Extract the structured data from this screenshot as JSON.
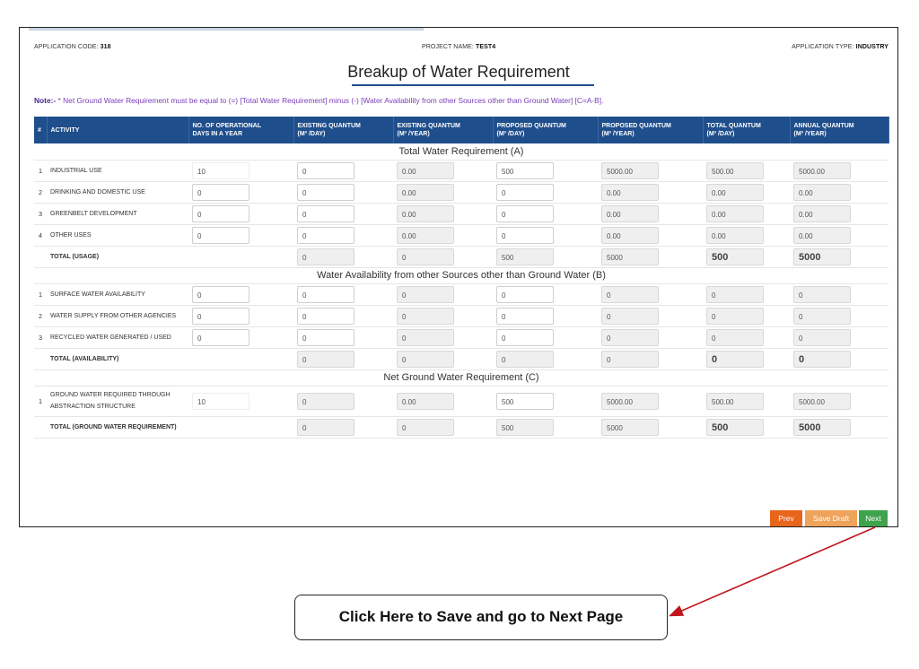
{
  "header": {
    "code_label": "APPLICATION CODE:",
    "code_value": "318",
    "project_label": "PROJECT NAME:",
    "project_value": "TEST4",
    "type_label": "APPLICATION TYPE:",
    "type_value": "INDUSTRY"
  },
  "title": "Breakup of Water Requirement",
  "note": {
    "prefix": "Note:-",
    "text": " * Net Ground Water Requirement must be equal to (=) [Total Water Requirement] minus (-) [Water Availability from other Sources other than Ground Water] [C=A-B]."
  },
  "columns": {
    "num": "#",
    "activity": "ACTIVITY",
    "days_l1": "NO. OF OPERATIONAL",
    "days_l2": "DAYS IN A YEAR",
    "ex_day_l1": "EXISTING QUANTUM",
    "ex_day_l2": "(M³ /DAY)",
    "ex_year_l1": "EXISTING QUANTUM",
    "ex_year_l2": "(M³ /YEAR)",
    "pr_day_l1": "PROPOSED QUANTUM",
    "pr_day_l2": "(M³ /DAY)",
    "pr_year_l1": "PROPOSED QUANTUM",
    "pr_year_l2": "(M³ /YEAR)",
    "tot_day_l1": "TOTAL QUANTUM",
    "tot_day_l2": "(M³ /DAY)",
    "ann_l1": "ANNUAL QUANTUM",
    "ann_l2": "(M³ /YEAR)"
  },
  "sectionA": {
    "title": "Total Water Requirement (A)",
    "rows": [
      {
        "num": "1",
        "activity": "INDUSTRIAL USE",
        "days": "10",
        "ex_day": "0",
        "ex_year": "0.00",
        "pr_day": "500",
        "pr_year": "5000.00",
        "tot_day": "500.00",
        "annual": "5000.00"
      },
      {
        "num": "2",
        "activity": "DRINKING AND DOMESTIC USE",
        "days": "0",
        "ex_day": "0",
        "ex_year": "0.00",
        "pr_day": "0",
        "pr_year": "0.00",
        "tot_day": "0.00",
        "annual": "0.00"
      },
      {
        "num": "3",
        "activity": "GREENBELT DEVELOPMENT",
        "days": "0",
        "ex_day": "0",
        "ex_year": "0.00",
        "pr_day": "0",
        "pr_year": "0.00",
        "tot_day": "0.00",
        "annual": "0.00"
      },
      {
        "num": "4",
        "activity": "OTHER USES",
        "days": "0",
        "ex_day": "0",
        "ex_year": "0.00",
        "pr_day": "0",
        "pr_year": "0.00",
        "tot_day": "0.00",
        "annual": "0.00"
      }
    ],
    "total": {
      "activity": "TOTAL (USAGE)",
      "ex_day": "0",
      "ex_year": "0",
      "pr_day": "500",
      "pr_year": "5000",
      "tot_day": "500",
      "annual": "5000"
    }
  },
  "sectionB": {
    "title": "Water Availability from other Sources other than Ground Water (B)",
    "rows": [
      {
        "num": "1",
        "activity": "SURFACE WATER AVAILABILITY",
        "days": "0",
        "ex_day": "0",
        "ex_year": "0",
        "pr_day": "0",
        "pr_year": "0",
        "tot_day": "0",
        "annual": "0"
      },
      {
        "num": "2",
        "activity": "WATER SUPPLY FROM OTHER AGENCIES",
        "days": "0",
        "ex_day": "0",
        "ex_year": "0",
        "pr_day": "0",
        "pr_year": "0",
        "tot_day": "0",
        "annual": "0"
      },
      {
        "num": "3",
        "activity": "RECYCLED WATER GENERATED / USED",
        "days": "0",
        "ex_day": "0",
        "ex_year": "0",
        "pr_day": "0",
        "pr_year": "0",
        "tot_day": "0",
        "annual": "0"
      }
    ],
    "total": {
      "activity": "TOTAL (AVAILABILITY)",
      "ex_day": "0",
      "ex_year": "0",
      "pr_day": "0",
      "pr_year": "0",
      "tot_day": "0",
      "annual": "0"
    }
  },
  "sectionC": {
    "title": "Net Ground Water Requirement (C)",
    "rows": [
      {
        "num": "1",
        "activity_l1": "GROUND WATER REQUIRED THROUGH",
        "activity_l2": "ABSTRACTION STRUCTURE",
        "days": "10",
        "ex_day": "0",
        "ex_year": "0.00",
        "pr_day": "500",
        "pr_year": "5000.00",
        "tot_day": "500.00",
        "annual": "5000.00"
      }
    ],
    "total": {
      "activity": "TOTAL (GROUND WATER REQUIREMENT)",
      "ex_day": "0",
      "ex_year": "0",
      "pr_day": "500",
      "pr_year": "5000",
      "tot_day": "500",
      "annual": "5000"
    }
  },
  "buttons": {
    "prev": "Prev",
    "save_draft": "Save Draft",
    "next": "Next"
  },
  "callout": "Click Here to Save and go to Next Page",
  "colors": {
    "header_blue": "#1f4e8c",
    "prev": "#e8651c",
    "draft": "#f0a35a",
    "next": "#3ea34d",
    "arrow": "#c0151b"
  }
}
